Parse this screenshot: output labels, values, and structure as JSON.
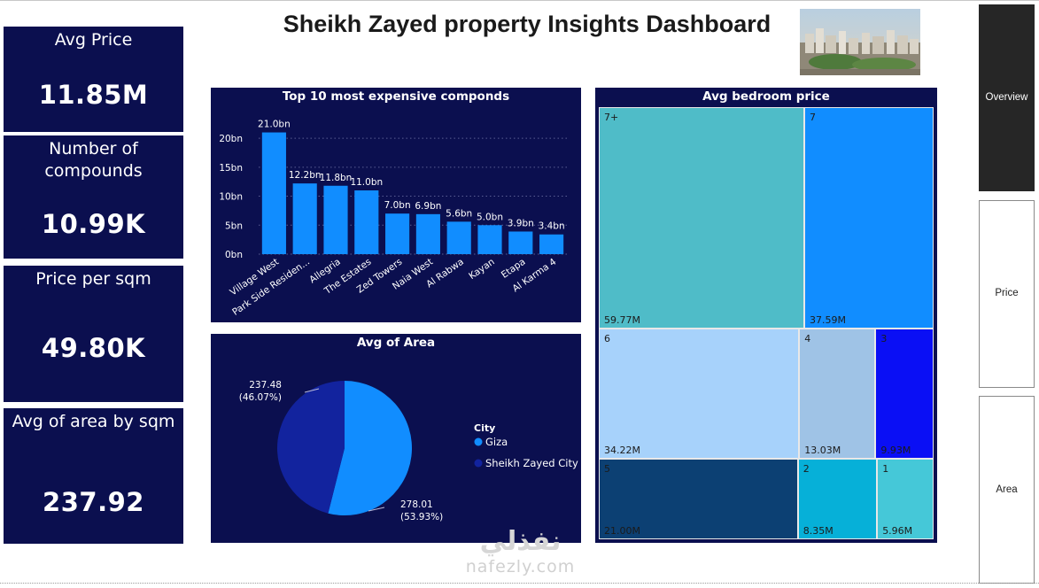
{
  "dashboard": {
    "title": "Sheikh Zayed property Insights Dashboard"
  },
  "kpis": [
    {
      "label": "Avg Price",
      "value": "11.85M"
    },
    {
      "label": "Number of compounds",
      "value": "10.99K"
    },
    {
      "label": "Price per sqm",
      "value": "49.80K"
    },
    {
      "label": "Avg of area by sqm",
      "value": "237.92"
    }
  ],
  "bar_chart": {
    "title": "Top 10 most expensive componds",
    "y_ticks": [
      "0bn",
      "5bn",
      "10bn",
      "15bn",
      "20bn"
    ],
    "bar_color": "#118dff"
  },
  "pie_chart": {
    "title": "Avg of Area",
    "legend_title": "City",
    "slice_labels": [
      {
        "value": "278.01",
        "pct": "(53.93%)"
      },
      {
        "value": "237.48",
        "pct": "(46.07%)"
      }
    ]
  },
  "treemap": {
    "title": "Avg bedroom price"
  },
  "nav": {
    "overview": "Overview",
    "price": "Price",
    "area": "Area"
  },
  "watermark": {
    "arabic": "نفذلي",
    "latin": "nafezly.com"
  },
  "chart_data": [
    {
      "type": "bar",
      "title": "Top 10 most expensive componds",
      "categories": [
        "Village West",
        "Park Side Residen...",
        "Allegria",
        "The Estates",
        "Zed Towers",
        "Naia West",
        "Al Rabwa",
        "Kayan",
        "Etapa",
        "Al Karma 4"
      ],
      "values": [
        21.0,
        12.2,
        11.8,
        11.0,
        7.0,
        6.9,
        5.6,
        5.0,
        3.9,
        3.4
      ],
      "data_labels": [
        "21.0bn",
        "12.2bn",
        "11.8bn",
        "11.0bn",
        "7.0bn",
        "6.9bn",
        "5.6bn",
        "5.0bn",
        "3.9bn",
        "3.4bn"
      ],
      "ylim": [
        0,
        22
      ],
      "y_ticks": [
        0,
        5,
        10,
        15,
        20
      ],
      "grid": "dotted-horizontal"
    },
    {
      "type": "pie",
      "title": "Avg of Area",
      "legend_title": "City",
      "legend_position": "right",
      "slices": [
        {
          "name": "Giza",
          "value": 278.01,
          "percent": 53.93,
          "color": "#118dff"
        },
        {
          "name": "Sheikh Zayed City",
          "value": 237.48,
          "percent": 46.07,
          "color": "#12239e"
        }
      ]
    },
    {
      "type": "treemap",
      "title": "Avg bedroom price",
      "items": [
        {
          "name": "7+",
          "value": 59.77,
          "label": "59.77M",
          "color": "#4fbcc8"
        },
        {
          "name": "7",
          "value": 37.59,
          "label": "37.59M",
          "color": "#118dff"
        },
        {
          "name": "6",
          "value": 34.22,
          "label": "34.22M",
          "color": "#a7d2fb"
        },
        {
          "name": "4",
          "value": 13.03,
          "label": "13.03M",
          "color": "#9fc3e6"
        },
        {
          "name": "3",
          "value": 9.93,
          "label": "9.93M",
          "color": "#0a0ff5"
        },
        {
          "name": "5",
          "value": 21.0,
          "label": "21.00M",
          "color": "#0c4073"
        },
        {
          "name": "2",
          "value": 8.35,
          "label": "8.35M",
          "color": "#06b0d8"
        },
        {
          "name": "1",
          "value": 5.96,
          "label": "5.96M",
          "color": "#45c8d8"
        }
      ]
    }
  ]
}
